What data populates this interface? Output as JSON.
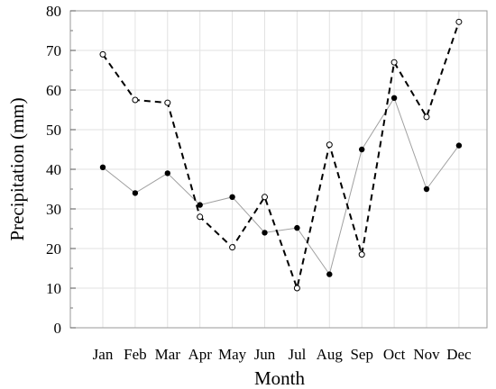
{
  "chart_data": {
    "type": "line",
    "title": "",
    "xlabel": "Month",
    "ylabel": "Precipitation (mm)",
    "categories": [
      "Jan",
      "Feb",
      "Mar",
      "Apr",
      "May",
      "Jun",
      "Jul",
      "Aug",
      "Sep",
      "Oct",
      "Nov",
      "Dec"
    ],
    "ylim": [
      0,
      80
    ],
    "yticks": [
      0,
      10,
      20,
      30,
      40,
      50,
      60,
      70,
      80
    ],
    "grid": true,
    "series": [
      {
        "line_style": "solid",
        "marker": "filled-circle",
        "color": "#a0a0a0",
        "marker_color": "#000000",
        "values": [
          40.5,
          34,
          39,
          31,
          33,
          24,
          25.2,
          13.5,
          45,
          58,
          35,
          46
        ]
      },
      {
        "line_style": "dashed",
        "marker": "open-circle",
        "color": "#000000",
        "marker_color": "#000000",
        "values": [
          69,
          57.5,
          56.8,
          28,
          20.3,
          33,
          10,
          46.2,
          18.5,
          67,
          53.2,
          77.2
        ]
      }
    ]
  }
}
